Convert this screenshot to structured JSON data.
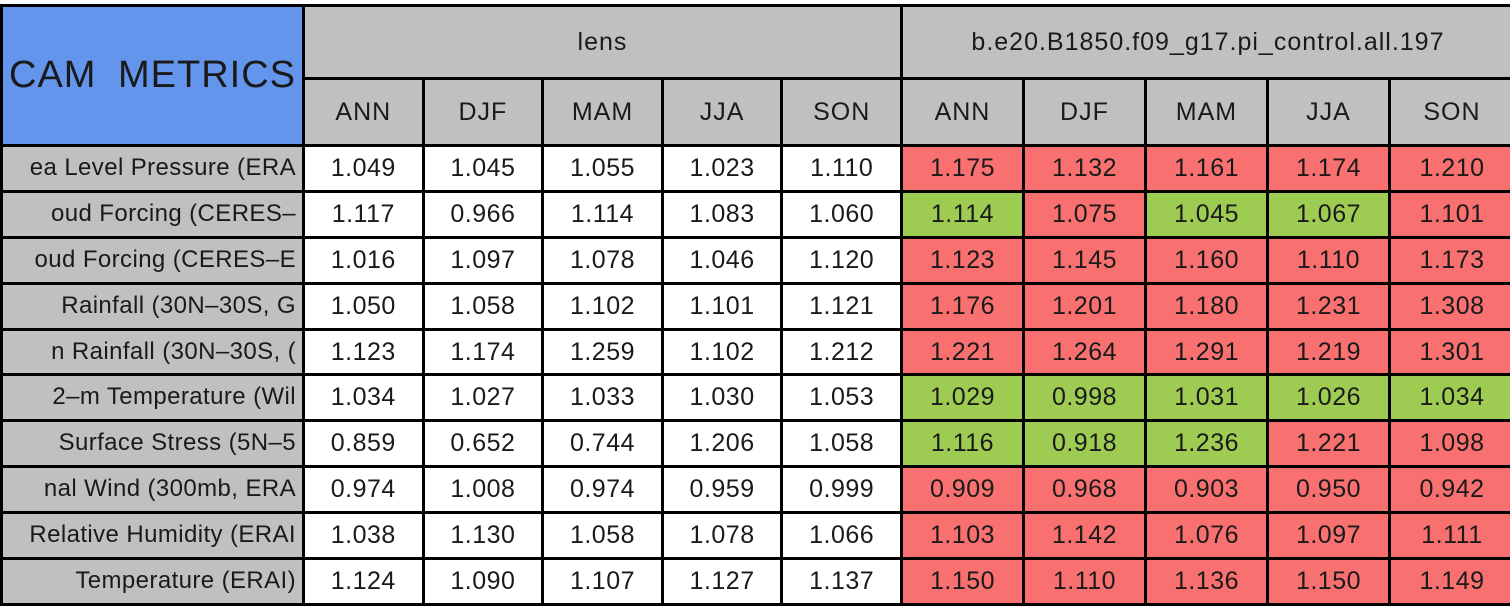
{
  "table": {
    "colors": {
      "title_bg": "#6495ED",
      "header_bg": "#C0C0C0",
      "neutral_bg": "#FFFFFF",
      "red": "#F97070",
      "green": "#9ECC52",
      "border": "#000000",
      "text": "#1A1A1A"
    }
  },
  "chart_data": {
    "type": "table",
    "title": "CAM METRICS",
    "column_groups": [
      "lens",
      "b.e20.B1850.f09_g17.pi_control.all.197"
    ],
    "columns": [
      "ANN",
      "DJF",
      "MAM",
      "JJA",
      "SON"
    ],
    "legend_note": "cell colors: green and red highlight on second column group",
    "rows": [
      {
        "label": "ea Level Pressure (ERA",
        "lens": [
          "1.049",
          "1.045",
          "1.055",
          "1.023",
          "1.110"
        ],
        "model": [
          "1.175",
          "1.132",
          "1.161",
          "1.174",
          "1.210"
        ],
        "model_colors": [
          "red",
          "red",
          "red",
          "red",
          "red"
        ]
      },
      {
        "label": "oud Forcing (CERES–",
        "lens": [
          "1.117",
          "0.966",
          "1.114",
          "1.083",
          "1.060"
        ],
        "model": [
          "1.114",
          "1.075",
          "1.045",
          "1.067",
          "1.101"
        ],
        "model_colors": [
          "green",
          "red",
          "green",
          "green",
          "red"
        ]
      },
      {
        "label": "oud Forcing (CERES–E",
        "lens": [
          "1.016",
          "1.097",
          "1.078",
          "1.046",
          "1.120"
        ],
        "model": [
          "1.123",
          "1.145",
          "1.160",
          "1.110",
          "1.173"
        ],
        "model_colors": [
          "red",
          "red",
          "red",
          "red",
          "red"
        ]
      },
      {
        "label": "Rainfall (30N–30S, G",
        "lens": [
          "1.050",
          "1.058",
          "1.102",
          "1.101",
          "1.121"
        ],
        "model": [
          "1.176",
          "1.201",
          "1.180",
          "1.231",
          "1.308"
        ],
        "model_colors": [
          "red",
          "red",
          "red",
          "red",
          "red"
        ]
      },
      {
        "label": "n Rainfall (30N–30S, (",
        "lens": [
          "1.123",
          "1.174",
          "1.259",
          "1.102",
          "1.212"
        ],
        "model": [
          "1.221",
          "1.264",
          "1.291",
          "1.219",
          "1.301"
        ],
        "model_colors": [
          "red",
          "red",
          "red",
          "red",
          "red"
        ]
      },
      {
        "label": "2–m Temperature (Wil",
        "lens": [
          "1.034",
          "1.027",
          "1.033",
          "1.030",
          "1.053"
        ],
        "model": [
          "1.029",
          "0.998",
          "1.031",
          "1.026",
          "1.034"
        ],
        "model_colors": [
          "green",
          "green",
          "green",
          "green",
          "green"
        ]
      },
      {
        "label": "Surface Stress (5N–5",
        "lens": [
          "0.859",
          "0.652",
          "0.744",
          "1.206",
          "1.058"
        ],
        "model": [
          "1.116",
          "0.918",
          "1.236",
          "1.221",
          "1.098"
        ],
        "model_colors": [
          "green",
          "green",
          "green",
          "red",
          "red"
        ]
      },
      {
        "label": "nal Wind (300mb, ERA",
        "lens": [
          "0.974",
          "1.008",
          "0.974",
          "0.959",
          "0.999"
        ],
        "model": [
          "0.909",
          "0.968",
          "0.903",
          "0.950",
          "0.942"
        ],
        "model_colors": [
          "red",
          "red",
          "red",
          "red",
          "red"
        ]
      },
      {
        "label": "Relative Humidity (ERAI",
        "lens": [
          "1.038",
          "1.130",
          "1.058",
          "1.078",
          "1.066"
        ],
        "model": [
          "1.103",
          "1.142",
          "1.076",
          "1.097",
          "1.111"
        ],
        "model_colors": [
          "red",
          "red",
          "red",
          "red",
          "red"
        ]
      },
      {
        "label": "Temperature (ERAI)",
        "lens": [
          "1.124",
          "1.090",
          "1.107",
          "1.127",
          "1.137"
        ],
        "model": [
          "1.150",
          "1.110",
          "1.136",
          "1.150",
          "1.149"
        ],
        "model_colors": [
          "red",
          "red",
          "red",
          "red",
          "red"
        ]
      }
    ]
  }
}
